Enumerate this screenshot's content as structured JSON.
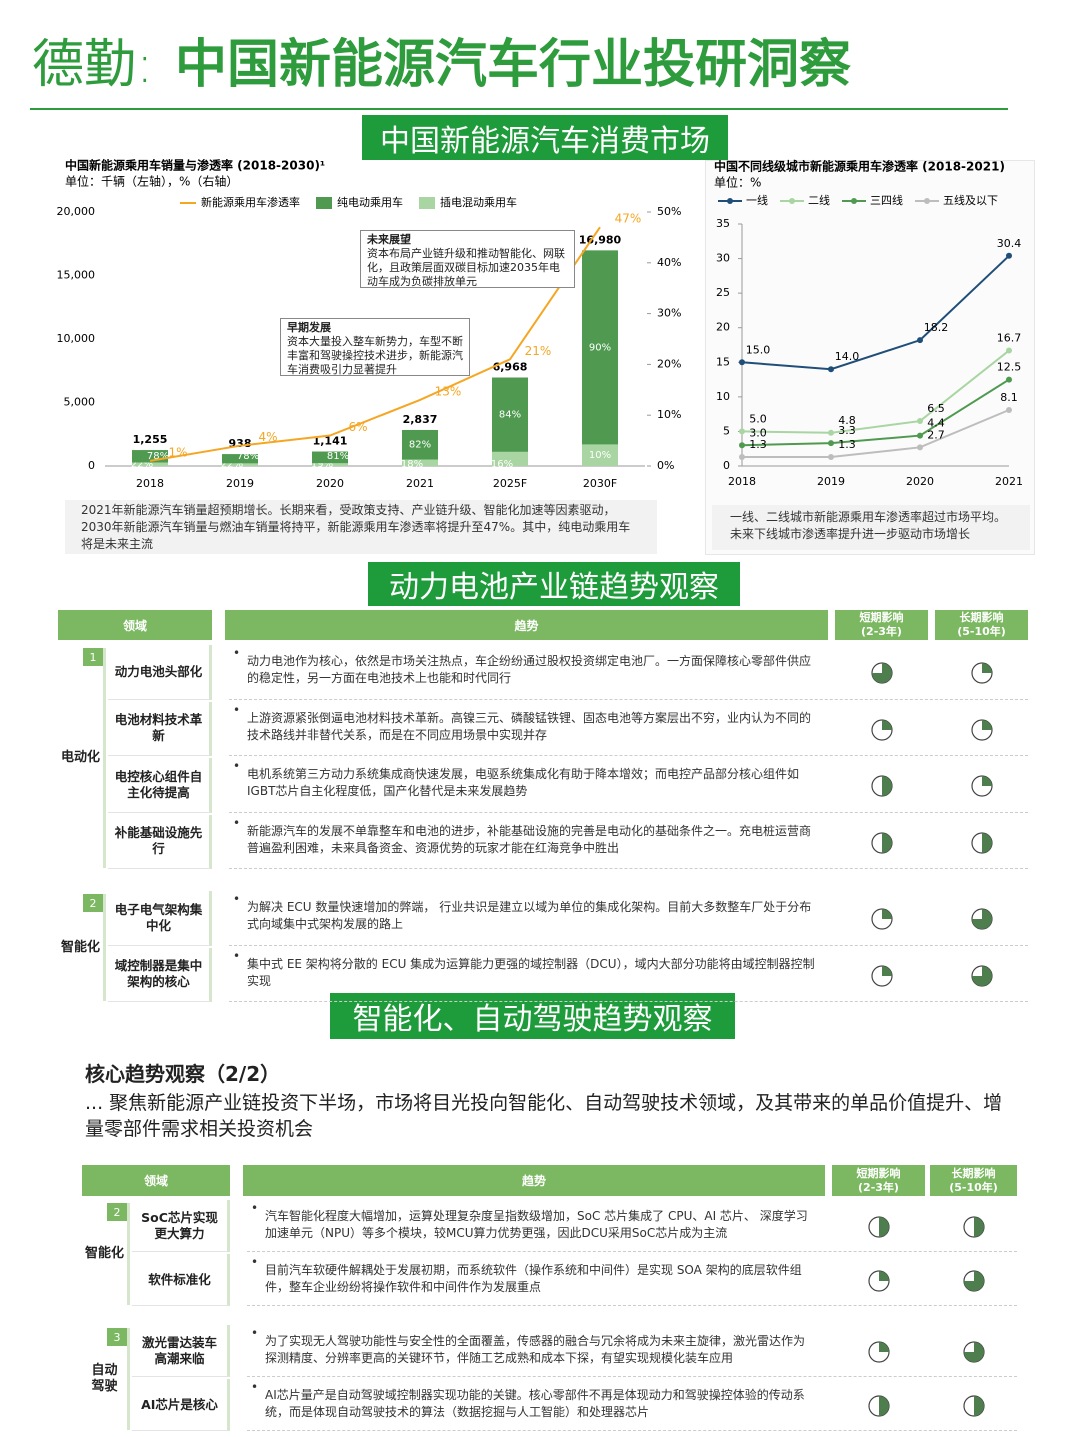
{
  "header": {
    "brand": "德勤:",
    "title": "中国新能源汽车行业投研洞察"
  },
  "sections": [
    "中国新能源汽车消费市场",
    "动力电池产业链趋势观察",
    "智能化、自动驾驶趋势观察"
  ],
  "chart_data": [
    {
      "type": "bar-line",
      "title": "中国新能源乘用车销量与渗透率 (2018-2030)¹",
      "subtitle": "单位：千辆（左轴），%（右轴）",
      "categories": [
        "2018",
        "2019",
        "2020",
        "2021",
        "2025F",
        "2030F"
      ],
      "totals": [
        1255,
        938,
        1141,
        2837,
        6968,
        16980
      ],
      "total_labels": [
        "1,255",
        "938",
        "1,141",
        "2,837",
        "6,968",
        "16,980"
      ],
      "series": [
        {
          "name": "新能源乘用车渗透率",
          "type": "line",
          "axis": "y2",
          "color": "#f5a623",
          "values": [
            1,
            4,
            6,
            13,
            21,
            47
          ],
          "value_labels": [
            "1%",
            "4%",
            "6%",
            "13%",
            "21%",
            "47%"
          ]
        },
        {
          "name": "纯电动乘用车",
          "type": "bar",
          "color": "#4f9a50",
          "values": [
            78,
            78,
            81,
            82,
            84,
            90
          ],
          "value_labels": [
            "78%",
            "78%",
            "81%",
            "82%",
            "84%",
            "90%"
          ]
        },
        {
          "name": "插电混动乘用车",
          "type": "bar",
          "color": "#a8d5a2",
          "values": [
            22,
            22,
            19,
            18,
            16,
            10
          ],
          "value_labels": [
            "22%",
            "22%",
            "19%",
            "18%",
            "16%",
            "10%"
          ]
        }
      ],
      "ylim": [
        0,
        20000
      ],
      "yticks": [
        0,
        {
          "value": 5000,
          "label": "5,000"
        },
        {
          "value": 10000,
          "label": "10,000"
        },
        {
          "value": 15000,
          "label": "15,000"
        },
        {
          "value": 20000,
          "label": "20,000"
        }
      ],
      "y2lim": [
        0,
        50
      ],
      "y2ticks": [
        {
          "value": 0,
          "label": "0%"
        },
        {
          "value": 10,
          "label": "10%"
        },
        {
          "value": 20,
          "label": "20%"
        },
        {
          "value": 30,
          "label": "30%"
        },
        {
          "value": 40,
          "label": "40%"
        },
        {
          "value": 50,
          "label": "50%"
        }
      ],
      "grid": false,
      "annotations": [
        {
          "title": "未来展望",
          "text": "资本布局产业链升级和推动智能化、网联化，且政策层面双碳目标加速2035年电动车成为负碳排放单元"
        },
        {
          "title": "早期发展",
          "text": "资本大量投入整车新势力，车型不断丰富和驾驶操控技术进步，新能源汽车消费吸引力显著提升"
        }
      ],
      "note": "2021年新能源汽车销量超预期增长。长期来看，受政策支持、产业链升级、智能化加速等因素驱动，2030年新能源汽车销量与燃油车销量将持平，新能源乘用车渗透率将提升至47%。其中，纯电动乘用车将是未来主流"
    },
    {
      "type": "line",
      "title": "中国不同线级城市新能源乘用车渗透率 (2018-2021)",
      "subtitle": "单位：%",
      "categories": [
        "2018",
        "2019",
        "2020",
        "2021"
      ],
      "series": [
        {
          "name": "一线",
          "color": "#1f4e79",
          "values": [
            15.0,
            14.0,
            18.2,
            30.4
          ],
          "value_labels": [
            "15.0",
            "14.0",
            "18.2",
            "30.4"
          ]
        },
        {
          "name": "二线",
          "color": "#a8d5a2",
          "values": [
            5.0,
            4.8,
            6.5,
            16.7
          ],
          "value_labels": [
            "5.0",
            "4.8",
            "6.5",
            "16.7"
          ]
        },
        {
          "name": "三四线",
          "color": "#4f9a50",
          "values": [
            3.0,
            3.3,
            4.4,
            12.5
          ],
          "value_labels": [
            "3.0",
            "3.3",
            "4.4",
            "12.5"
          ]
        },
        {
          "name": "五线及以下",
          "color": "#bdbdbd",
          "values": [
            1.3,
            1.3,
            2.7,
            8.1
          ],
          "value_labels": [
            "1.3",
            "1.3",
            "2.7",
            "8.1"
          ]
        }
      ],
      "ylim": [
        0,
        35
      ],
      "yticks": [
        0,
        5,
        10,
        15,
        20,
        25,
        30,
        35
      ],
      "grid": false,
      "note": "一线、二线城市新能源乘用车渗透率超过市场平均。未来下线城市渗透率提升进一步驱动市场增长"
    }
  ],
  "battery_table": {
    "columns": {
      "field": "领域",
      "trend": "趋势",
      "short": "短期影响",
      "short_period": "(2-3年)",
      "long": "长期影响",
      "long_period": "(5-10年)"
    },
    "groups": [
      {
        "number": "1",
        "name": "电动化",
        "rows": [
          {
            "field": "动力电池头部化",
            "trend": "动力电池作为核心，依然是市场关注热点，车企纷纷通过股权投资绑定电池厂。一方面保障核心零部件供应的稳定性，另一方面在电池技术上也能和时代同行",
            "short": 75,
            "long": 25
          },
          {
            "field": "电池材料技术革新",
            "trend": "上游资源紧张倒逼电池材料技术革新。高镍三元、磷酸锰铁锂、固态电池等方案层出不穷，业内认为不同的技术路线并非替代关系，而是在不同应用场景中实现并存",
            "short": 25,
            "long": 25
          },
          {
            "field": "电控核心组件自主化待提高",
            "trend": "电机系统第三方动力系统集成商快速发展，电驱系统集成化有助于降本增效；而电控产品部分核心组件如IGBT芯片自主化程度低，国产化替代是未来发展趋势",
            "short": 50,
            "long": 25
          },
          {
            "field": "补能基础设施先行",
            "trend": "新能源汽车的发展不单靠整车和电池的进步，补能基础设施的完善是电动化的基础条件之一。充电桩运营商普遍盈利困难，未来具备资金、资源优势的玩家才能在红海竞争中胜出",
            "short": 50,
            "long": 50
          }
        ]
      },
      {
        "number": "2",
        "name": "智能化",
        "rows": [
          {
            "field": "电子电气架构集中化",
            "trend": "为解决 ECU 数量快速增加的弊端， 行业共识是建立以域为单位的集成化架构。目前大多数整车厂处于分布式向域集中式架构发展的路上",
            "short": 25,
            "long": 75
          },
          {
            "field": "域控制器是集中架构的核心",
            "trend": "集中式 EE 架构将分散的 ECU 集成为运算能力更强的域控制器（DCU），域内大部分功能将由域控制器控制实现",
            "short": 25,
            "long": 75
          }
        ]
      }
    ]
  },
  "smart_heading": {
    "title": "核心趋势观察（2/2）",
    "text": "... 聚焦新能源产业链投资下半场，市场将目光投向智能化、自动驾驶技术领域，及其带来的单品价值提升、增量零部件需求相关投资机会"
  },
  "smart_table": {
    "columns": {
      "field": "领域",
      "trend": "趋势",
      "short": "短期影响",
      "short_period": "(2-3年)",
      "long": "长期影响",
      "long_period": "(5-10年)"
    },
    "groups": [
      {
        "number": "2",
        "name": "智能化",
        "rows": [
          {
            "field": "SoC芯片实现更大算力",
            "trend": "汽车智能化程度大幅增加，运算处理复杂度呈指数级增加，SoC 芯片集成了 CPU、AI 芯片、 深度学习加速单元（NPU）等多个模块，较MCU算力优势更强，因此DCU采用SoC芯片成为主流",
            "short": 50,
            "long": 50
          },
          {
            "field": "软件标准化",
            "trend": "目前汽车软硬件解耦处于发展初期，而系统软件（操作系统和中间件）是实现 SOA 架构的底层软件组件，整车企业纷纷将操作软件和中间件作为发展重点",
            "short": 25,
            "long": 75
          }
        ]
      },
      {
        "number": "3",
        "name": "自动\n驾驶",
        "rows": [
          {
            "field": "激光雷达装车高潮来临",
            "trend": "为了实现无人驾驶功能性与安全性的全面覆盖，传感器的融合与冗余将成为未来主旋律，激光雷达作为探测精度、分辨率更高的关键环节，伴随工艺成熟和成本下探，有望实现规模化装车应用",
            "short": 25,
            "long": 75
          },
          {
            "field": "AI芯片是核心",
            "trend": "AI芯片量产是自动驾驶域控制器实现功能的关键。核心零部件不再是体现动力和驾驶操控体验的传动系统，而是体现自动驾驶技术的算法（数据挖掘与人工智能）和处理器芯片",
            "short": 50,
            "long": 50
          }
        ]
      }
    ]
  }
}
